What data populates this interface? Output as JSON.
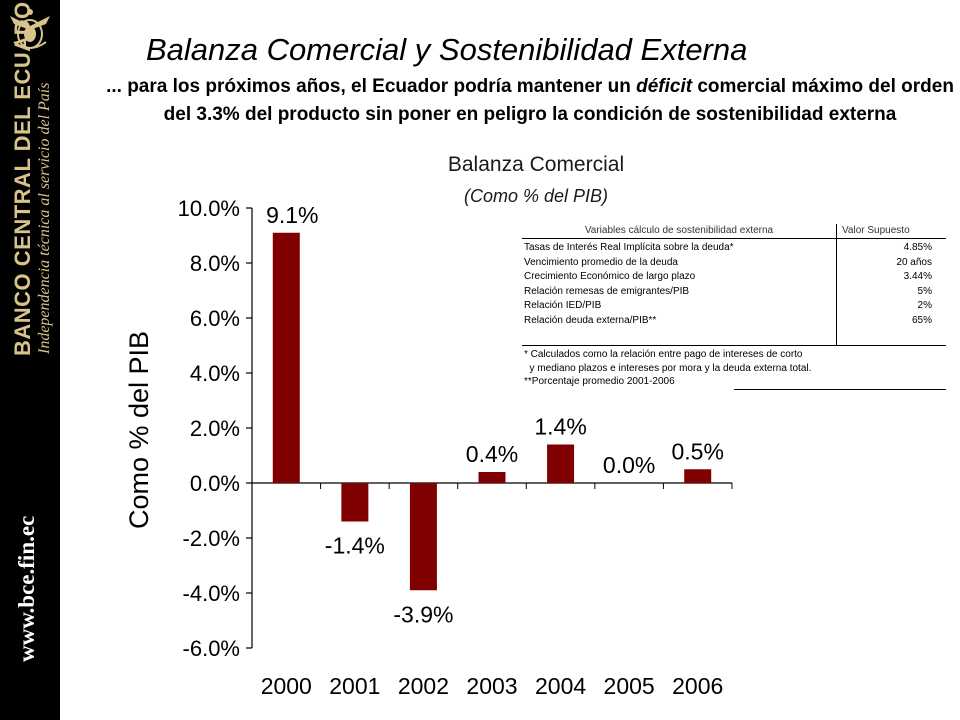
{
  "sidebar": {
    "bank_name": "BANCO CENTRAL DEL ECUADOR",
    "tagline": "Independencia técnica al servicio del País",
    "website": "www.bce.fin.ec"
  },
  "slide": {
    "title": "Balanza Comercial y Sostenibilidad Externa",
    "subtitle_part1": "... para los próximos años, el Ecuador podría mantener un ",
    "subtitle_emph": "déficit",
    "subtitle_part2": " comercial máximo del orden del 3.3% del producto sin poner en peligro la condición de sostenibilidad externa"
  },
  "chart_data": {
    "type": "bar",
    "title": "Balanza Comercial",
    "subtitle": "(Como % del PIB)",
    "ylabel": "Como % del PIB",
    "categories": [
      "2000",
      "2001",
      "2002",
      "2003",
      "2004",
      "2005",
      "2006"
    ],
    "values": [
      9.1,
      -1.4,
      -3.9,
      0.4,
      1.4,
      0.0,
      0.5
    ],
    "data_labels": [
      "9.1%",
      "-1.4%",
      "-3.9%",
      "0.4%",
      "1.4%",
      "0.0%",
      "0.5%"
    ],
    "ylim": [
      -6.0,
      10.0
    ],
    "yticks": [
      10.0,
      8.0,
      6.0,
      4.0,
      2.0,
      0.0,
      -2.0,
      -4.0,
      -6.0
    ],
    "ytick_labels": [
      "10.0%",
      "8.0%",
      "6.0%",
      "4.0%",
      "2.0%",
      "0.0%",
      "-2.0%",
      "-4.0%",
      "-6.0%"
    ],
    "bar_color": "#800000",
    "grid": false
  },
  "assumptions_table": {
    "header_variable": "Variables cálculo de sostenibilidad externa",
    "header_value": "Valor Supuesto",
    "rows": [
      {
        "label": "Tasas de Interés Real Implícita sobre la deuda*",
        "value": "4.85%"
      },
      {
        "label": "Vencimiento promedio de la deuda",
        "value": "20 años"
      },
      {
        "label": "Crecimiento Económico de largo plazo",
        "value": "3.44%"
      },
      {
        "label": "Relación remesas de emigrantes/PIB",
        "value": "5%"
      },
      {
        "label": "Relación IED/PIB",
        "value": "2%"
      },
      {
        "label": "Relación deuda externa/PIB**",
        "value": "65%"
      }
    ],
    "notes": [
      "* Calculados como la relación entre pago de intereses de corto",
      "  y mediano plazos e intereses por mora y la deuda externa total.",
      "**Porcentaje promedio 2001-2006"
    ]
  }
}
